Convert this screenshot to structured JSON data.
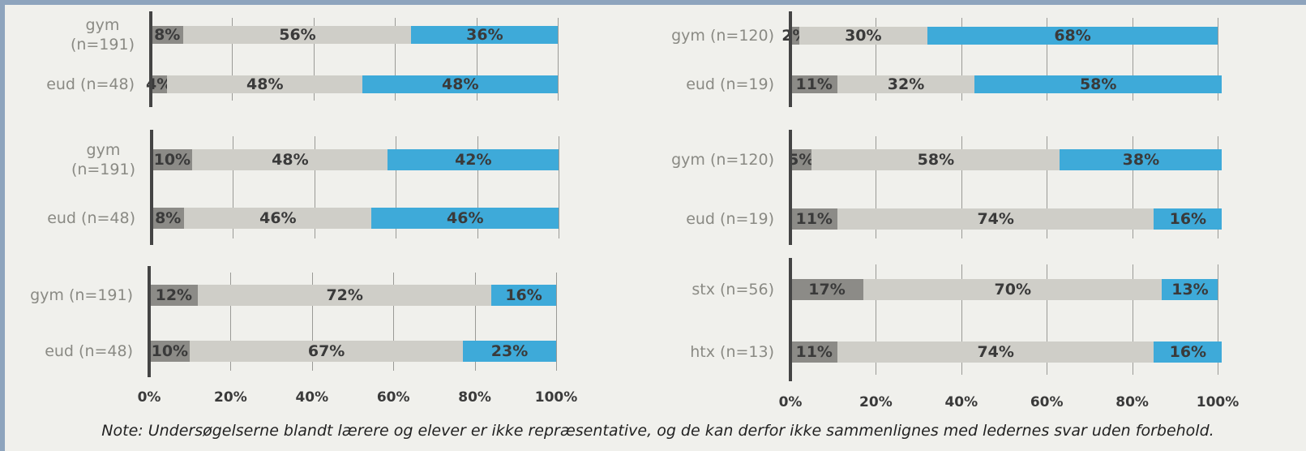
{
  "note": "Note: Undersøgelserne blandt lærere og elever er ikke repræsentative, og de kan derfor ikke sammenlignes med ledernes svar uden forbehold.",
  "chart_data": [
    {
      "type": "stacked-barh",
      "categories": [
        "gym\n(n=191)",
        "eud (n=48)"
      ],
      "xlim": [
        0,
        100
      ],
      "xticks": [
        0,
        20,
        40,
        60,
        80,
        100
      ],
      "show_xtick_labels": false,
      "grid": true,
      "series": [
        {
          "color": "#8c8b87",
          "values": [
            8,
            4
          ],
          "value_labels": [
            "8%",
            "4%"
          ]
        },
        {
          "color": "#cfcec8",
          "values": [
            56,
            48
          ],
          "value_labels": [
            "56%",
            "48%"
          ]
        },
        {
          "color": "#3eaad9",
          "values": [
            36,
            48
          ],
          "value_labels": [
            "36%",
            "48%"
          ]
        }
      ]
    },
    {
      "type": "stacked-barh",
      "categories": [
        "gym\n(n=191)",
        "eud (n=48)"
      ],
      "xlim": [
        0,
        100
      ],
      "xticks": [
        0,
        20,
        40,
        60,
        80,
        100
      ],
      "show_xtick_labels": false,
      "grid": true,
      "series": [
        {
          "color": "#8c8b87",
          "values": [
            10,
            8
          ],
          "value_labels": [
            "10%",
            "8%"
          ]
        },
        {
          "color": "#cfcec8",
          "values": [
            48,
            46
          ],
          "value_labels": [
            "48%",
            "46%"
          ]
        },
        {
          "color": "#3eaad9",
          "values": [
            42,
            46
          ],
          "value_labels": [
            "42%",
            "46%"
          ]
        }
      ]
    },
    {
      "type": "stacked-barh",
      "categories": [
        "gym (n=191)",
        "eud (n=48)"
      ],
      "xlim": [
        0,
        100
      ],
      "xticks": [
        {
          "value": 0,
          "label": "0%"
        },
        {
          "value": 20,
          "label": "20%"
        },
        {
          "value": 40,
          "label": "40%"
        },
        {
          "value": 60,
          "label": "60%"
        },
        {
          "value": 80,
          "label": "80%"
        },
        {
          "value": 100,
          "label": "100%"
        }
      ],
      "show_xtick_labels": true,
      "grid": true,
      "series": [
        {
          "color": "#8c8b87",
          "values": [
            12,
            10
          ],
          "value_labels": [
            "12%",
            "10%"
          ]
        },
        {
          "color": "#cfcec8",
          "values": [
            72,
            67
          ],
          "value_labels": [
            "72%",
            "67%"
          ]
        },
        {
          "color": "#3eaad9",
          "values": [
            16,
            23
          ],
          "value_labels": [
            "16%",
            "23%"
          ]
        }
      ]
    },
    {
      "type": "stacked-barh",
      "categories": [
        "gym (n=120)",
        "eud (n=19)"
      ],
      "xlim": [
        0,
        100
      ],
      "xticks": [
        0,
        20,
        40,
        60,
        80,
        100
      ],
      "show_xtick_labels": false,
      "grid": true,
      "series": [
        {
          "color": "#8c8b87",
          "values": [
            2,
            11
          ],
          "value_labels": [
            "2%",
            "11%"
          ]
        },
        {
          "color": "#cfcec8",
          "values": [
            30,
            32
          ],
          "value_labels": [
            "30%",
            "32%"
          ]
        },
        {
          "color": "#3eaad9",
          "values": [
            68,
            58
          ],
          "value_labels": [
            "68%",
            "58%"
          ]
        }
      ]
    },
    {
      "type": "stacked-barh",
      "categories": [
        "gym (n=120)",
        "eud (n=19)"
      ],
      "xlim": [
        0,
        100
      ],
      "xticks": [
        0,
        20,
        40,
        60,
        80,
        100
      ],
      "show_xtick_labels": false,
      "grid": true,
      "series": [
        {
          "color": "#8c8b87",
          "values": [
            5,
            11
          ],
          "value_labels": [
            "5%",
            "11%"
          ]
        },
        {
          "color": "#cfcec8",
          "values": [
            58,
            74
          ],
          "value_labels": [
            "58%",
            "74%"
          ]
        },
        {
          "color": "#3eaad9",
          "values": [
            38,
            16
          ],
          "value_labels": [
            "38%",
            "16%"
          ]
        }
      ]
    },
    {
      "type": "stacked-barh",
      "categories": [
        "stx (n=56)",
        "htx (n=13)"
      ],
      "xlim": [
        0,
        100
      ],
      "xticks": [
        {
          "value": 0,
          "label": "0%"
        },
        {
          "value": 20,
          "label": "20%"
        },
        {
          "value": 40,
          "label": "40%"
        },
        {
          "value": 60,
          "label": "60%"
        },
        {
          "value": 80,
          "label": "80%"
        },
        {
          "value": 100,
          "label": "100%"
        }
      ],
      "show_xtick_labels": true,
      "grid": true,
      "series": [
        {
          "color": "#8c8b87",
          "values": [
            17,
            11
          ],
          "value_labels": [
            "17%",
            "11%"
          ]
        },
        {
          "color": "#cfcec8",
          "values": [
            70,
            74
          ],
          "value_labels": [
            "70%",
            "74%"
          ]
        },
        {
          "color": "#3eaad9",
          "values": [
            13,
            16
          ],
          "value_labels": [
            "13%",
            "16%"
          ]
        }
      ]
    }
  ]
}
